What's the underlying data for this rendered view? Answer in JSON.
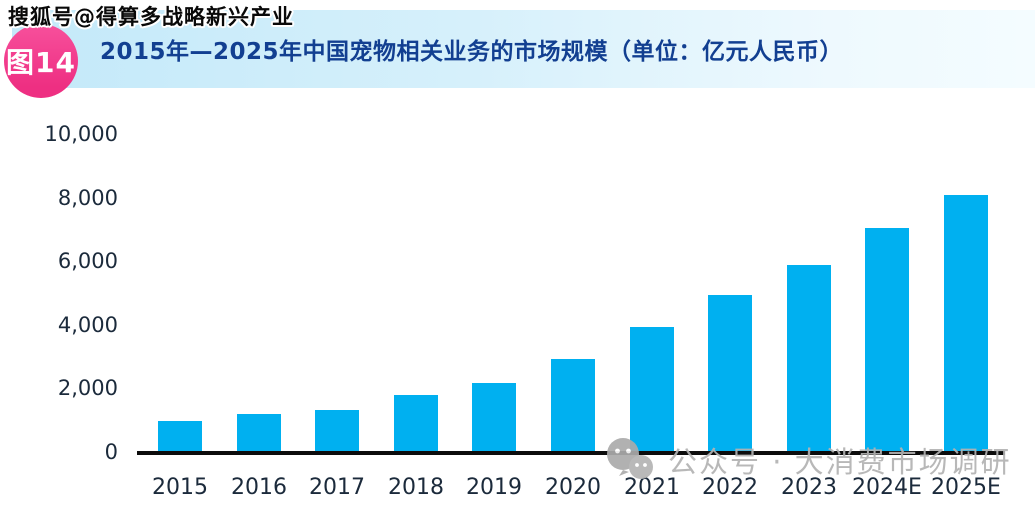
{
  "page": {
    "top_watermark": "搜狐号@得算多战略新兴产业",
    "figure_badge": "图14",
    "title": "2015年—2025年中国宠物相关业务的市场规模（单位：亿元人民币）",
    "bottom_watermark": "公众号 · 大消费市场调研"
  },
  "colors": {
    "bar": "#00b0f0",
    "badge_pink": "#ee2f82",
    "title_text": "#123f91",
    "axis_line": "#0c0c0c",
    "tick_text": "#1b2a3b",
    "watermark_gray": "#b3b3b3",
    "header_gradient_start": "#c3e9f9",
    "header_gradient_end": "#f4fcff"
  },
  "chart_data": {
    "type": "bar",
    "title": "2015年—2025年中国宠物相关业务的市场规模（单位：亿元人民币）",
    "unit": "亿元人民币",
    "categories": [
      "2015",
      "2016",
      "2017",
      "2018",
      "2019",
      "2020",
      "2021",
      "2022",
      "2023",
      "2024E",
      "2025E"
    ],
    "values": [
      950,
      1150,
      1300,
      1750,
      2150,
      2900,
      3900,
      4900,
      5850,
      7000,
      8050
    ],
    "y_tick_labels": [
      "10,000",
      "8,000",
      "6,000",
      "4,000",
      "2,000",
      "0"
    ],
    "y_tick_values": [
      10000,
      8000,
      6000,
      4000,
      2000,
      0
    ],
    "ylim": [
      0,
      10000
    ],
    "grid": false,
    "legend": "none",
    "bar_color": "#00b0f0"
  }
}
